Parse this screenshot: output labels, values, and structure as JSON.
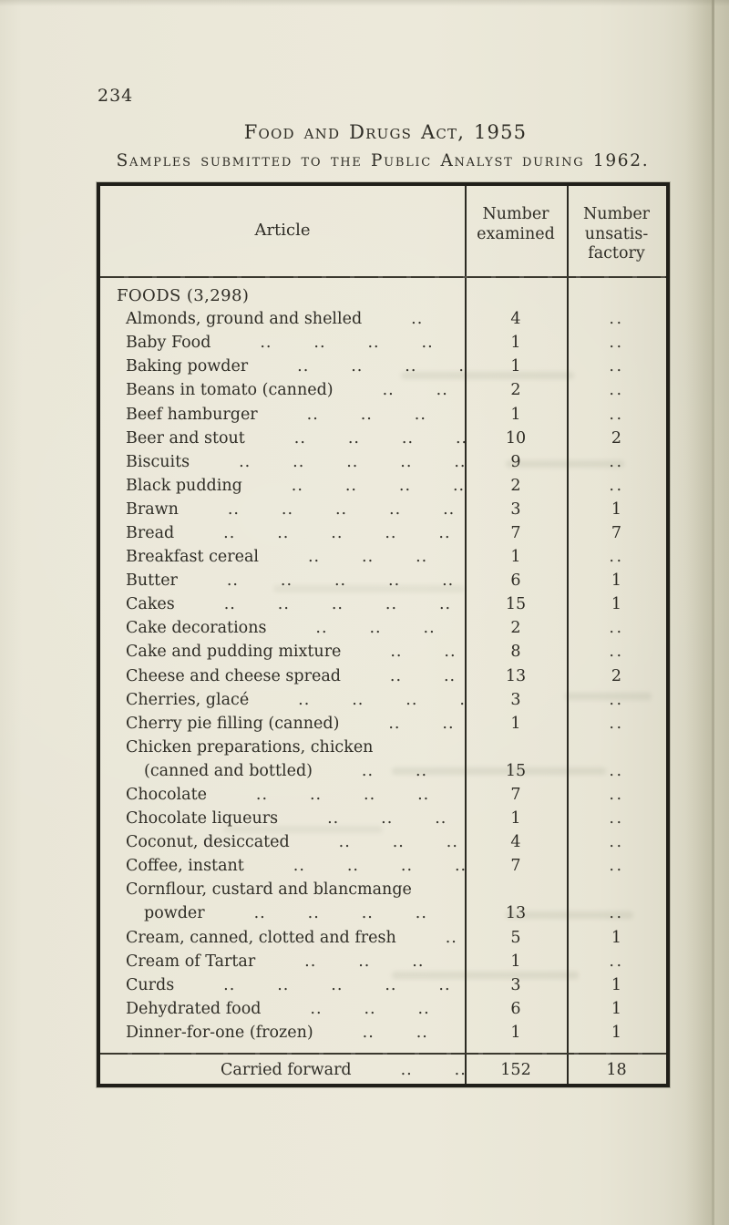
{
  "page": {
    "number": "234",
    "title": "Food and Drugs Act, 1955",
    "subtitle": "Samples submitted to the Public Analyst during 1962."
  },
  "table": {
    "headers": {
      "article": "Article",
      "examined": "Number\nexamined",
      "unsatisfactory": "Number\nunsatis-\nfactory"
    },
    "leader_unit": "..",
    "empty_mark": "..",
    "rows": [
      {
        "article": "FOODS (3,298)",
        "style": "section",
        "leaders": false,
        "examined": "",
        "unsatisfactory": ""
      },
      {
        "article": "Almonds, ground and shelled",
        "style": "item",
        "leaders": true,
        "examined": "4",
        "unsatisfactory": ".."
      },
      {
        "article": "Baby Food",
        "style": "item",
        "leaders": true,
        "examined": "1",
        "unsatisfactory": ".."
      },
      {
        "article": "Baking powder",
        "style": "item",
        "leaders": true,
        "examined": "1",
        "unsatisfactory": ".."
      },
      {
        "article": "Beans in tomato (canned)",
        "style": "item",
        "leaders": true,
        "examined": "2",
        "unsatisfactory": ".."
      },
      {
        "article": "Beef hamburger",
        "style": "item",
        "leaders": true,
        "examined": "1",
        "unsatisfactory": ".."
      },
      {
        "article": "Beer and stout",
        "style": "item",
        "leaders": true,
        "examined": "10",
        "unsatisfactory": "2"
      },
      {
        "article": "Biscuits",
        "style": "item",
        "leaders": true,
        "examined": "9",
        "unsatisfactory": ".."
      },
      {
        "article": "Black pudding",
        "style": "item",
        "leaders": true,
        "examined": "2",
        "unsatisfactory": ".."
      },
      {
        "article": "Brawn",
        "style": "item",
        "leaders": true,
        "examined": "3",
        "unsatisfactory": "1"
      },
      {
        "article": "Bread",
        "style": "item",
        "leaders": true,
        "examined": "7",
        "unsatisfactory": "7"
      },
      {
        "article": "Breakfast cereal",
        "style": "item",
        "leaders": true,
        "examined": "1",
        "unsatisfactory": ".."
      },
      {
        "article": "Butter",
        "style": "item",
        "leaders": true,
        "examined": "6",
        "unsatisfactory": "1"
      },
      {
        "article": "Cakes",
        "style": "item",
        "leaders": true,
        "examined": "15",
        "unsatisfactory": "1"
      },
      {
        "article": "Cake decorations",
        "style": "item",
        "leaders": true,
        "examined": "2",
        "unsatisfactory": ".."
      },
      {
        "article": "Cake and pudding mixture",
        "style": "item",
        "leaders": true,
        "examined": "8",
        "unsatisfactory": ".."
      },
      {
        "article": "Cheese and cheese spread",
        "style": "item",
        "leaders": true,
        "examined": "13",
        "unsatisfactory": "2"
      },
      {
        "article": "Cherries, glacé",
        "style": "item",
        "leaders": true,
        "examined": "3",
        "unsatisfactory": ".."
      },
      {
        "article": "Cherry pie filling (canned)",
        "style": "item",
        "leaders": true,
        "examined": "1",
        "unsatisfactory": ".."
      },
      {
        "article": "Chicken preparations, chicken",
        "style": "item",
        "leaders": false,
        "examined": "",
        "unsatisfactory": ""
      },
      {
        "article": "(canned and bottled)",
        "style": "cont",
        "leaders": true,
        "examined": "15",
        "unsatisfactory": ".."
      },
      {
        "article": "Chocolate",
        "style": "item",
        "leaders": true,
        "examined": "7",
        "unsatisfactory": ".."
      },
      {
        "article": "Chocolate liqueurs",
        "style": "item",
        "leaders": true,
        "examined": "1",
        "unsatisfactory": ".."
      },
      {
        "article": "Coconut, desiccated",
        "style": "item",
        "leaders": true,
        "examined": "4",
        "unsatisfactory": ".."
      },
      {
        "article": "Coffee, instant",
        "style": "item",
        "leaders": true,
        "examined": "7",
        "unsatisfactory": ".."
      },
      {
        "article": "Cornflour, custard and blancmange",
        "style": "item",
        "leaders": false,
        "examined": "",
        "unsatisfactory": ""
      },
      {
        "article": "powder",
        "style": "cont",
        "leaders": true,
        "examined": "13",
        "unsatisfactory": ".."
      },
      {
        "article": "Cream, canned, clotted and fresh",
        "style": "item",
        "leaders": true,
        "examined": "5",
        "unsatisfactory": "1"
      },
      {
        "article": "Cream of Tartar",
        "style": "item",
        "leaders": true,
        "examined": "1",
        "unsatisfactory": ".."
      },
      {
        "article": "Curds",
        "style": "item",
        "leaders": true,
        "examined": "3",
        "unsatisfactory": "1"
      },
      {
        "article": "Dehydrated food",
        "style": "item",
        "leaders": true,
        "examined": "6",
        "unsatisfactory": "1"
      },
      {
        "article": "Dinner-for-one (frozen)",
        "style": "item",
        "leaders": true,
        "examined": "1",
        "unsatisfactory": "1"
      }
    ],
    "footer": {
      "label": "Carried forward",
      "examined": "152",
      "unsatisfactory": "18"
    }
  }
}
